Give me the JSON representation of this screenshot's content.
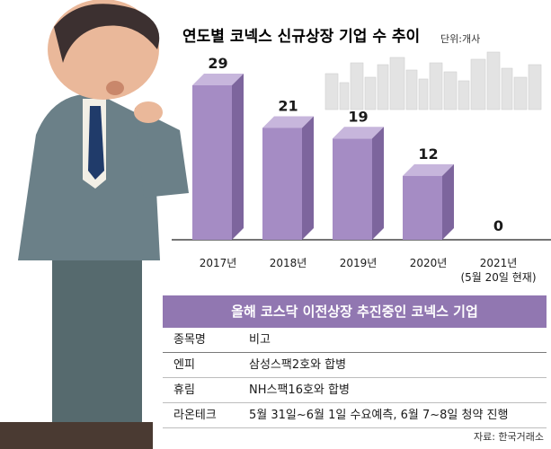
{
  "chart_data": {
    "type": "bar",
    "title": "연도별 코넥스 신규상장 기업 수 추이",
    "unit": "단위:개사",
    "categories": [
      "2017년",
      "2018년",
      "2019년",
      "2020년",
      "2021년"
    ],
    "category_notes": [
      "",
      "",
      "",
      "",
      "(5월 20일 현재)"
    ],
    "values": [
      29,
      21,
      19,
      12,
      0
    ],
    "ylim": [
      0,
      30
    ],
    "grid": false,
    "colors": {
      "bar_front": "#a58cc4",
      "bar_side": "#7d659d",
      "bar_top": "#c7b6dc"
    }
  },
  "table": {
    "title": "올해 코스닥 이전상장 추진중인 코넥스 기업",
    "headers": [
      "종목명",
      "비고"
    ],
    "rows": [
      [
        "엔피",
        "삼성스팩2호와 합병"
      ],
      [
        "휴림",
        "NH스팩16호와 합병"
      ],
      [
        "라온테크",
        "5월 31일~6월 1일 수요예측, 6월 7~8일 청약 진행"
      ]
    ]
  },
  "source": "자료: 한국거래소"
}
